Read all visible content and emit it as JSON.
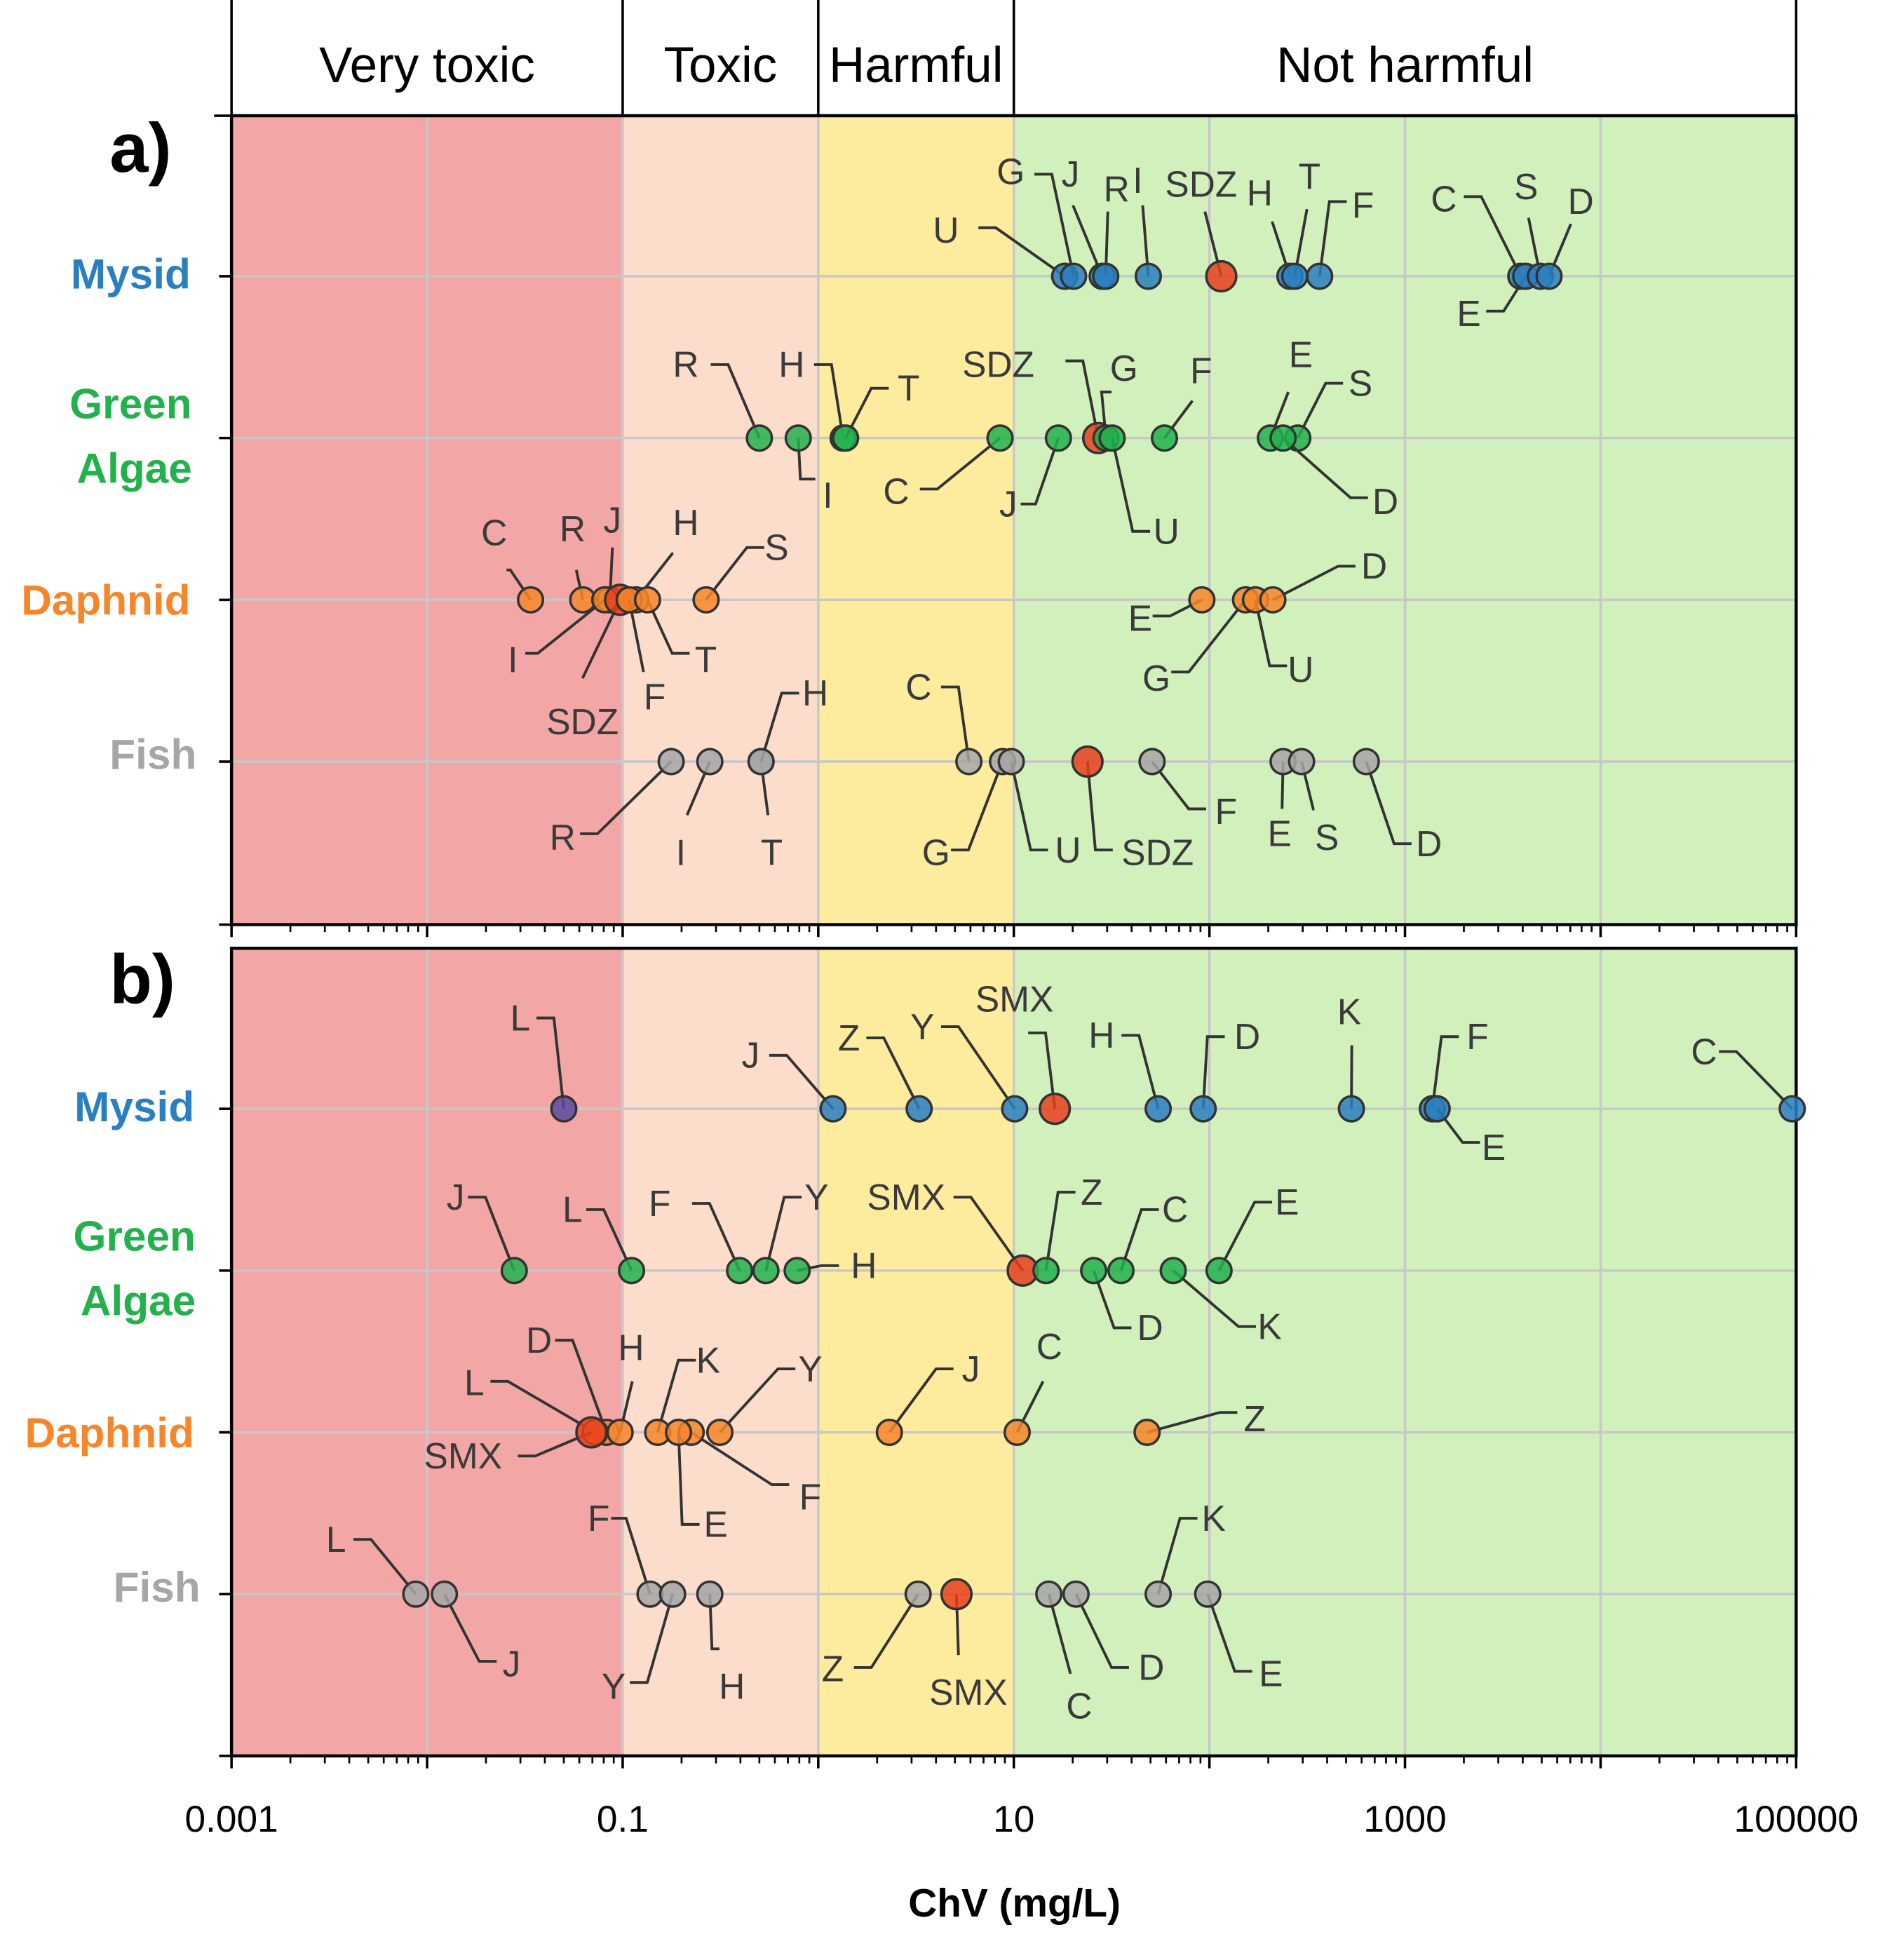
{
  "chart_data": {
    "type": "scatter",
    "xlabel": "ChV (mg/L)",
    "xscale": "log",
    "xlim": [
      0.001,
      100000
    ],
    "x_ticks": [
      "0.001",
      "0.1",
      "10",
      "1000",
      "100000"
    ],
    "categories_bands": [
      {
        "name": "Very toxic",
        "from": 0.001,
        "to": 0.1,
        "color": "#f3a6a6"
      },
      {
        "name": "Toxic",
        "from": 0.1,
        "to": 1,
        "color": "#fcdcca"
      },
      {
        "name": "Harmful",
        "from": 1,
        "to": 10,
        "color": "#fdec9e"
      },
      {
        "name": "Not harmful",
        "from": 10,
        "to": 100000,
        "color": "#d2f0bc"
      }
    ],
    "highlight_color": "#e8401c",
    "panels": [
      {
        "letter": "a)",
        "rows": [
          {
            "name": "Mysid",
            "lines": [
              "Mysid"
            ],
            "color": "#2a7fc0",
            "points": [
              {
                "label": "U",
                "value": 18.2
              },
              {
                "label": "G",
                "value": 20.2
              },
              {
                "label": "J",
                "value": 28.3
              },
              {
                "label": "R",
                "value": 29.5
              },
              {
                "label": "I",
                "value": 48.7
              },
              {
                "label": "SDZ",
                "value": 115,
                "highlight": true
              },
              {
                "label": "H",
                "value": 258
              },
              {
                "label": "T",
                "value": 273
              },
              {
                "label": "F",
                "value": 366
              },
              {
                "label": "C",
                "value": 3910
              },
              {
                "label": "E",
                "value": 4140
              },
              {
                "label": "S",
                "value": 4920
              },
              {
                "label": "D",
                "value": 5450
              }
            ]
          },
          {
            "name": "Green Algae",
            "lines": [
              "Green",
              "Algae"
            ],
            "color": "#22b14c",
            "points": [
              {
                "label": "R",
                "value": 0.5
              },
              {
                "label": "I",
                "value": 0.79
              },
              {
                "label": "H",
                "value": 1.34
              },
              {
                "label": "T",
                "value": 1.38
              },
              {
                "label": "C",
                "value": 8.5
              },
              {
                "label": "J",
                "value": 16.9
              },
              {
                "label": "SDZ",
                "value": 27,
                "highlight": true
              },
              {
                "label": "G",
                "value": 29.6
              },
              {
                "label": "U",
                "value": 31.8
              },
              {
                "label": "F",
                "value": 58.9
              },
              {
                "label": "E",
                "value": 205
              },
              {
                "label": "S",
                "value": 283
              },
              {
                "label": "D",
                "value": 238
              }
            ]
          },
          {
            "name": "Daphnid",
            "lines": [
              "Daphnid"
            ],
            "color": "#f7862a",
            "points": [
              {
                "label": "C",
                "value": 0.0338
              },
              {
                "label": "R",
                "value": 0.0625
              },
              {
                "label": "J",
                "value": 0.086
              },
              {
                "label": "H",
                "value": 0.117
              },
              {
                "label": "S",
                "value": 0.267
              },
              {
                "label": "I",
                "value": 0.081
              },
              {
                "label": "SDZ",
                "value": 0.097,
                "highlight": true
              },
              {
                "label": "F",
                "value": 0.108
              },
              {
                "label": "T",
                "value": 0.134
              },
              {
                "label": "E",
                "value": 91.5
              },
              {
                "label": "G",
                "value": 153
              },
              {
                "label": "U",
                "value": 172
              },
              {
                "label": "D",
                "value": 211
              }
            ]
          },
          {
            "name": "Fish",
            "lines": [
              "Fish"
            ],
            "color": "#a6a6a6",
            "points": [
              {
                "label": "R",
                "value": 0.177
              },
              {
                "label": "I",
                "value": 0.279
              },
              {
                "label": "T",
                "value": 0.51
              },
              {
                "label": "H",
                "value": 0.51
              },
              {
                "label": "C",
                "value": 5.89
              },
              {
                "label": "G",
                "value": 8.75
              },
              {
                "label": "U",
                "value": 9.7
              },
              {
                "label": "SDZ",
                "value": 23.8,
                "highlight": true
              },
              {
                "label": "F",
                "value": 50.9
              },
              {
                "label": "E",
                "value": 238
              },
              {
                "label": "S",
                "value": 296
              },
              {
                "label": "D",
                "value": 634
              }
            ]
          }
        ]
      },
      {
        "letter": "b)",
        "rows": [
          {
            "name": "Mysid",
            "lines": [
              "Mysid"
            ],
            "color": "#2a7fc0",
            "points": [
              {
                "label": "L",
                "value": 0.05,
                "color": "#5b4a9e"
              },
              {
                "label": "J",
                "value": 1.19
              },
              {
                "label": "Z",
                "value": 3.28
              },
              {
                "label": "Y",
                "value": 10.1
              },
              {
                "label": "SMX",
                "value": 16.2,
                "highlight": true
              },
              {
                "label": "H",
                "value": 54.7
              },
              {
                "label": "D",
                "value": 92.9
              },
              {
                "label": "K",
                "value": 532
              },
              {
                "label": "F",
                "value": 1380
              },
              {
                "label": "E",
                "value": 1460
              },
              {
                "label": "C",
                "value": 95500
              }
            ]
          },
          {
            "name": "Green Algae",
            "lines": [
              "Green",
              "Algae"
            ],
            "color": "#22b14c",
            "points": [
              {
                "label": "J",
                "value": 0.0279
              },
              {
                "label": "L",
                "value": 0.111
              },
              {
                "label": "F",
                "value": 0.396
              },
              {
                "label": "Y",
                "value": 0.54
              },
              {
                "label": "H",
                "value": 0.78
              },
              {
                "label": "SMX",
                "value": 11.1,
                "highlight": true
              },
              {
                "label": "Z",
                "value": 14.6
              },
              {
                "label": "C",
                "value": 35.3
              },
              {
                "label": "E",
                "value": 112
              },
              {
                "label": "D",
                "value": 25.6
              },
              {
                "label": "K",
                "value": 65.3
              }
            ]
          },
          {
            "name": "Daphnid",
            "lines": [
              "Daphnid"
            ],
            "color": "#f7862a",
            "points": [
              {
                "label": "D",
                "value": 0.0826
              },
              {
                "label": "H",
                "value": 0.097
              },
              {
                "label": "L",
                "value": 0.0723
              },
              {
                "label": "SMX",
                "value": 0.0692,
                "highlight": true
              },
              {
                "label": "K",
                "value": 0.151
              },
              {
                "label": "Y",
                "value": 0.314
              },
              {
                "label": "F",
                "value": 0.224
              },
              {
                "label": "E",
                "value": 0.193
              },
              {
                "label": "J",
                "value": 2.31
              },
              {
                "label": "C",
                "value": 10.4
              },
              {
                "label": "Z",
                "value": 48
              }
            ]
          },
          {
            "name": "Fish",
            "lines": [
              "Fish"
            ],
            "color": "#a6a6a6",
            "points": [
              {
                "label": "L",
                "value": 0.00875
              },
              {
                "label": "J",
                "value": 0.01226
              },
              {
                "label": "F",
                "value": 0.138
              },
              {
                "label": "Y",
                "value": 0.18
              },
              {
                "label": "H",
                "value": 0.279
              },
              {
                "label": "Z",
                "value": 3.24
              },
              {
                "label": "SMX",
                "value": 5.09,
                "highlight": true
              },
              {
                "label": "C",
                "value": 15.1
              },
              {
                "label": "D",
                "value": 20.8
              },
              {
                "label": "E",
                "value": 98
              },
              {
                "label": "K",
                "value": 54.7
              }
            ]
          }
        ]
      }
    ]
  }
}
